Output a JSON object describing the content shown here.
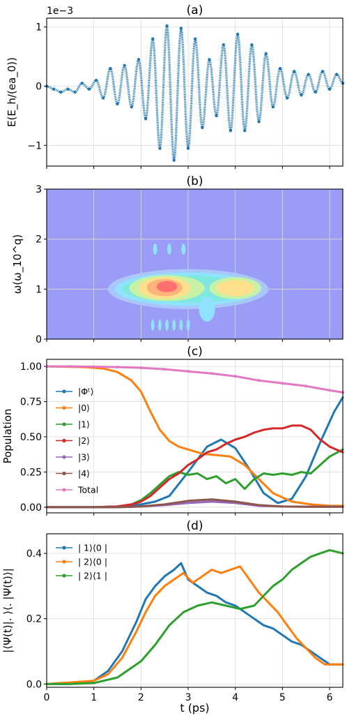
{
  "chart_data": [
    {
      "panel_label": "(a)",
      "type": "line",
      "ylabel": "E(E_h/(ea_0))",
      "offset_text": "1e−3",
      "xlim": [
        0,
        6.28
      ],
      "ylim": [
        -1.35,
        1.15
      ],
      "yticks": [
        "−1",
        "0",
        "1"
      ],
      "ytick_values": [
        -1,
        0,
        1
      ],
      "grid": true,
      "series": [
        {
          "color": "#1f77b4",
          "style": "dotted-dense",
          "x": [
            0.0,
            0.15,
            0.3,
            0.45,
            0.6,
            0.75,
            0.9,
            1.05,
            1.2,
            1.35,
            1.5,
            1.65,
            1.8,
            1.95,
            2.1,
            2.25,
            2.4,
            2.55,
            2.7,
            2.85,
            3.0,
            3.15,
            3.3,
            3.45,
            3.6,
            3.75,
            3.9,
            4.05,
            4.2,
            4.35,
            4.5,
            4.65,
            4.8,
            4.95,
            5.1,
            5.25,
            5.4,
            5.55,
            5.7,
            5.85,
            6.0,
            6.15,
            6.28
          ],
          "y": [
            0.0,
            -0.05,
            -0.1,
            -0.05,
            -0.1,
            0.05,
            -0.05,
            0.1,
            -0.2,
            0.3,
            -0.3,
            0.35,
            -0.35,
            0.45,
            -0.55,
            0.8,
            -1.05,
            1.02,
            -1.25,
            0.98,
            -1.05,
            0.8,
            -0.7,
            0.45,
            -0.5,
            0.7,
            -0.75,
            0.88,
            -0.75,
            0.7,
            -0.6,
            0.55,
            -0.35,
            0.3,
            -0.2,
            0.25,
            -0.15,
            0.2,
            -0.1,
            0.25,
            -0.05,
            0.2,
            0.05
          ]
        }
      ]
    },
    {
      "panel_label": "(b)",
      "type": "heatmap",
      "ylabel": "ω(ω_10^q)",
      "xlim": [
        0,
        6.28
      ],
      "ylim": [
        0,
        3
      ],
      "yticks": [
        "0",
        "1",
        "2",
        "3"
      ],
      "ytick_values": [
        0,
        1,
        2,
        3
      ],
      "grid": true,
      "background_color": "#9b9cf6",
      "levels": [
        {
          "level": 1,
          "color": "#a9c8f9"
        },
        {
          "level": 2,
          "color": "#8fe3ff"
        },
        {
          "level": 3,
          "color": "#7fe8df"
        },
        {
          "level": 4,
          "color": "#c7f2a6"
        },
        {
          "level": 5,
          "color": "#ffe08c"
        },
        {
          "level": 6,
          "color": "#ffb27a"
        },
        {
          "level": 7,
          "color": "#ff6f6f"
        }
      ]
    },
    {
      "panel_label": "(c)",
      "type": "line",
      "ylabel": "Population",
      "xlim": [
        0,
        6.28
      ],
      "ylim": [
        -0.04,
        1.05
      ],
      "yticks": [
        "0.00",
        "0.25",
        "0.50",
        "0.75",
        "1.00"
      ],
      "ytick_values": [
        0,
        0.25,
        0.5,
        0.75,
        1.0
      ],
      "grid": true,
      "legend_position": "left",
      "series": [
        {
          "name": "|Φᵗ⟩",
          "color": "#1f77b4",
          "x": [
            0,
            1.0,
            1.5,
            2.0,
            2.3,
            2.6,
            3.0,
            3.4,
            3.7,
            4.0,
            4.3,
            4.6,
            4.9,
            5.2,
            5.5,
            5.8,
            6.1,
            6.28
          ],
          "y": [
            0,
            0,
            0.005,
            0.02,
            0.04,
            0.08,
            0.25,
            0.43,
            0.48,
            0.42,
            0.27,
            0.1,
            0.03,
            0.06,
            0.22,
            0.46,
            0.68,
            0.78
          ]
        },
        {
          "name": "|0⟩",
          "color": "#ff7f0e",
          "x": [
            0,
            0.8,
            1.2,
            1.5,
            1.8,
            2.0,
            2.2,
            2.4,
            2.6,
            2.8,
            3.0,
            3.3,
            3.6,
            3.9,
            4.2,
            4.5,
            4.8,
            5.2,
            5.6,
            6.0,
            6.28
          ],
          "y": [
            1.0,
            0.995,
            0.985,
            0.96,
            0.9,
            0.82,
            0.68,
            0.55,
            0.47,
            0.43,
            0.41,
            0.38,
            0.37,
            0.36,
            0.3,
            0.2,
            0.1,
            0.04,
            0.02,
            0.01,
            0.01
          ]
        },
        {
          "name": "|1⟩",
          "color": "#2ca02c",
          "x": [
            0,
            1.0,
            1.5,
            1.8,
            2.0,
            2.2,
            2.4,
            2.6,
            2.8,
            3.0,
            3.2,
            3.4,
            3.6,
            3.8,
            4.0,
            4.2,
            4.4,
            4.6,
            4.8,
            5.0,
            5.2,
            5.4,
            5.6,
            5.8,
            6.0,
            6.28
          ],
          "y": [
            0,
            0,
            0.005,
            0.02,
            0.05,
            0.1,
            0.16,
            0.22,
            0.25,
            0.23,
            0.24,
            0.2,
            0.22,
            0.17,
            0.2,
            0.13,
            0.2,
            0.24,
            0.23,
            0.24,
            0.23,
            0.25,
            0.24,
            0.3,
            0.36,
            0.41
          ]
        },
        {
          "name": "|2⟩",
          "color": "#d62728",
          "x": [
            0,
            1.0,
            1.5,
            1.8,
            2.0,
            2.2,
            2.4,
            2.6,
            2.8,
            3.0,
            3.2,
            3.4,
            3.6,
            3.8,
            4.0,
            4.2,
            4.4,
            4.6,
            4.8,
            5.0,
            5.2,
            5.4,
            5.6,
            5.8,
            6.0,
            6.28
          ],
          "y": [
            0,
            0,
            0.005,
            0.02,
            0.04,
            0.08,
            0.14,
            0.2,
            0.24,
            0.3,
            0.34,
            0.39,
            0.41,
            0.45,
            0.48,
            0.5,
            0.53,
            0.55,
            0.56,
            0.56,
            0.58,
            0.58,
            0.55,
            0.48,
            0.43,
            0.39
          ]
        },
        {
          "name": "|3⟩",
          "color": "#9467bd",
          "x": [
            0,
            1.5,
            2.0,
            2.5,
            3.0,
            3.5,
            4.0,
            4.5,
            5.0,
            5.5,
            6.28
          ],
          "y": [
            0,
            0,
            0.005,
            0.015,
            0.03,
            0.04,
            0.03,
            0.01,
            0.005,
            0.003,
            0.003
          ]
        },
        {
          "name": "|4⟩",
          "color": "#8c564b",
          "x": [
            0,
            1.5,
            2.0,
            2.5,
            3.0,
            3.5,
            4.0,
            4.5,
            5.0,
            5.5,
            6.28
          ],
          "y": [
            0,
            0,
            0.005,
            0.02,
            0.045,
            0.055,
            0.04,
            0.015,
            0.005,
            0.003,
            0.003
          ]
        },
        {
          "name": "Total",
          "color": "#e377c2",
          "x": [
            0,
            0.5,
            1.0,
            1.5,
            2.0,
            2.5,
            3.0,
            3.5,
            4.0,
            4.5,
            5.0,
            5.5,
            6.0,
            6.28
          ],
          "y": [
            1.0,
            1.0,
            0.998,
            0.995,
            0.99,
            0.98,
            0.965,
            0.95,
            0.93,
            0.9,
            0.88,
            0.86,
            0.83,
            0.815
          ]
        }
      ]
    },
    {
      "panel_label": "(d)",
      "type": "line",
      "ylabel": "|⟨Ψ(t)|. ⟩⟨. |Ψ(t)⟩|",
      "xlabel": "t (ps)",
      "xlim": [
        0,
        6.28
      ],
      "ylim": [
        -0.01,
        0.46
      ],
      "xticks": [
        "0",
        "1",
        "2",
        "3",
        "4",
        "5",
        "6"
      ],
      "xtick_values": [
        0,
        1,
        2,
        3,
        4,
        5,
        6
      ],
      "yticks": [
        "0.0",
        "0.2",
        "0.4"
      ],
      "ytick_values": [
        0,
        0.2,
        0.4
      ],
      "grid": true,
      "legend_position": "top-left",
      "series": [
        {
          "name": "| 1⟩⟨0 |",
          "color": "#1f77b4",
          "x": [
            0,
            0.5,
            1.0,
            1.3,
            1.6,
            1.9,
            2.1,
            2.3,
            2.5,
            2.7,
            2.85,
            3.0,
            3.2,
            3.4,
            3.6,
            3.8,
            4.0,
            4.2,
            4.4,
            4.6,
            4.8,
            5.0,
            5.2,
            5.4,
            5.6,
            5.8,
            6.0,
            6.28
          ],
          "y": [
            0.0,
            0.0,
            0.01,
            0.04,
            0.1,
            0.19,
            0.26,
            0.3,
            0.33,
            0.35,
            0.37,
            0.32,
            0.3,
            0.28,
            0.27,
            0.25,
            0.24,
            0.22,
            0.2,
            0.18,
            0.17,
            0.15,
            0.13,
            0.12,
            0.1,
            0.08,
            0.06,
            0.06
          ]
        },
        {
          "name": "| 2⟩⟨0 |",
          "color": "#ff7f0e",
          "x": [
            0,
            0.5,
            1.0,
            1.3,
            1.6,
            1.9,
            2.1,
            2.3,
            2.5,
            2.7,
            2.9,
            3.1,
            3.3,
            3.5,
            3.7,
            3.9,
            4.1,
            4.3,
            4.5,
            4.7,
            4.9,
            5.1,
            5.3,
            5.5,
            5.7,
            5.9,
            6.1,
            6.28
          ],
          "y": [
            0.0,
            0.005,
            0.01,
            0.03,
            0.08,
            0.16,
            0.22,
            0.27,
            0.3,
            0.32,
            0.34,
            0.31,
            0.33,
            0.35,
            0.34,
            0.35,
            0.36,
            0.32,
            0.28,
            0.25,
            0.22,
            0.18,
            0.14,
            0.11,
            0.08,
            0.06,
            0.06,
            0.06
          ]
        },
        {
          "name": "| 2⟩⟨1 |",
          "color": "#2ca02c",
          "x": [
            0,
            0.5,
            1.0,
            1.5,
            2.0,
            2.3,
            2.6,
            2.9,
            3.2,
            3.5,
            3.8,
            4.1,
            4.4,
            4.6,
            4.8,
            5.0,
            5.2,
            5.4,
            5.6,
            5.8,
            6.0,
            6.28
          ],
          "y": [
            0.0,
            0.0,
            0.003,
            0.02,
            0.07,
            0.12,
            0.18,
            0.22,
            0.24,
            0.25,
            0.24,
            0.23,
            0.24,
            0.27,
            0.3,
            0.32,
            0.35,
            0.37,
            0.39,
            0.4,
            0.41,
            0.4
          ]
        }
      ]
    }
  ]
}
